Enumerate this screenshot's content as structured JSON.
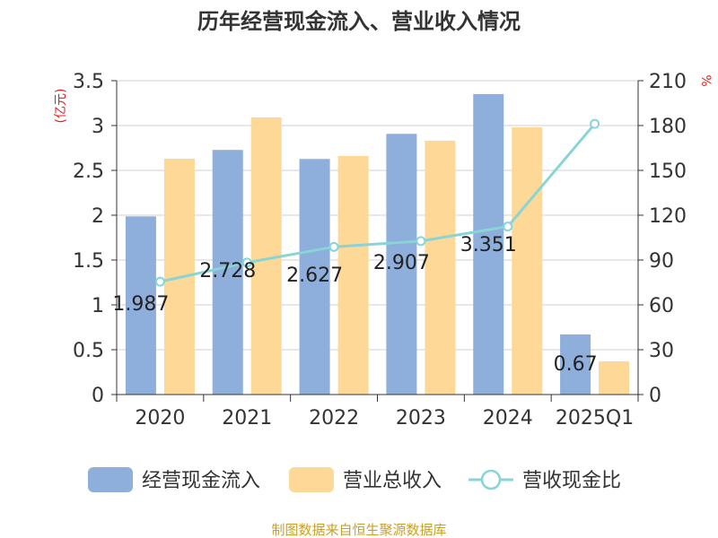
{
  "chart_data": {
    "type": "bar",
    "title": "历年经营现金流入、营业收入情况",
    "categories": [
      "2020",
      "2021",
      "2022",
      "2023",
      "2024",
      "2025Q1"
    ],
    "y_left_label": "(亿元)",
    "y_right_label": "%",
    "y_left_range": [
      0,
      3.5
    ],
    "y_left_ticks": [
      "0",
      "0.5",
      "1",
      "1.5",
      "2",
      "2.5",
      "3",
      "3.5"
    ],
    "y_right_range": [
      0,
      210
    ],
    "y_right_ticks": [
      "0",
      "30",
      "60",
      "90",
      "120",
      "150",
      "180",
      "210"
    ],
    "grid": true,
    "legend_position": "bottom",
    "series": [
      {
        "name": "经营现金流入",
        "type": "bar",
        "axis": "left",
        "color": "#8eaedb",
        "values": [
          1.987,
          2.728,
          2.627,
          2.907,
          3.351,
          0.67
        ],
        "labels": [
          "1.987",
          "2.728",
          "2.627",
          "2.907",
          "3.351",
          "0.67"
        ]
      },
      {
        "name": "营业总收入",
        "type": "bar",
        "axis": "left",
        "color": "#fdd896",
        "values": [
          2.63,
          3.09,
          2.66,
          2.83,
          2.98,
          0.37
        ]
      },
      {
        "name": "营收现金比",
        "type": "line",
        "axis": "right",
        "color": "#88d4d6",
        "values": [
          75.5,
          88.3,
          98.8,
          102.7,
          112.4,
          181.1
        ]
      }
    ]
  },
  "footer": "制图数据来自恒生聚源数据库"
}
